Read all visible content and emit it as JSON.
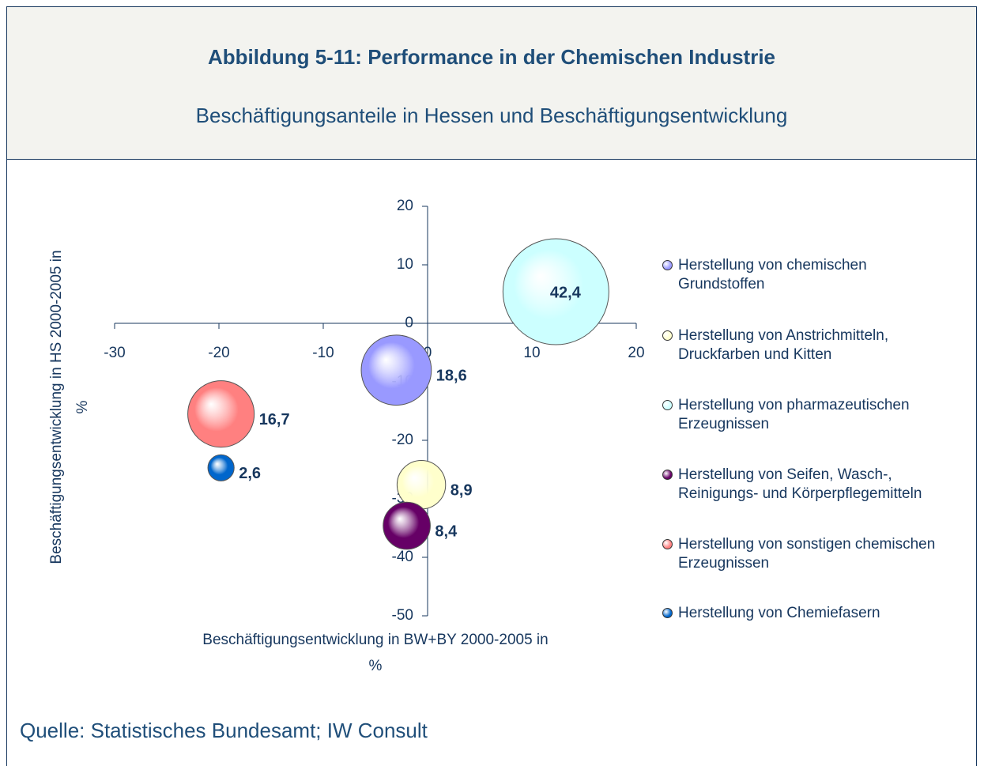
{
  "chart_data": {
    "type": "bubble",
    "title": "Abbildung 5-11: Performance in der Chemischen Industrie",
    "subtitle": "Beschäftigungsanteile in Hessen und Beschäftigungsentwicklung",
    "x_label": "Beschäftigungsentwicklung in BW+BY 2000-2005 in %",
    "y_label": "Beschäftigungsentwicklung in HS 2000-2005 in %",
    "source": "Quelle: Statistisches Bundesamt; IW Consult",
    "xlim": [
      -30,
      20
    ],
    "xticks": [
      -30,
      -20,
      -10,
      0,
      10,
      20
    ],
    "ylim": [
      -50,
      20
    ],
    "yticks": [
      -50,
      -40,
      -30,
      -20,
      -10,
      0,
      10,
      20
    ],
    "series": [
      {
        "name": "Herstellung von chemischen Grundstoffen",
        "color": "#9999ff",
        "x": [
          -3
        ],
        "values": [
          -8
        ],
        "sizes": [
          18.6
        ],
        "value_labels": [
          "18,6"
        ]
      },
      {
        "name": "Herstellung von Anstrichmitteln, Druckfarben und Kitten",
        "color": "#ffffcc",
        "x": [
          -0.6
        ],
        "values": [
          -27.6
        ],
        "sizes": [
          8.9
        ],
        "value_labels": [
          "8,9"
        ]
      },
      {
        "name": "Herstellung von pharmazeutischen Erzeugnissen",
        "color": "#ccffff",
        "x": [
          12.3
        ],
        "values": [
          5.4
        ],
        "sizes": [
          42.4
        ],
        "value_labels": [
          "42,4"
        ]
      },
      {
        "name": "Herstellung von Seifen, Wasch-, Reinigungs- und Körperpflegemitteln",
        "color": "#660066",
        "x": [
          -2
        ],
        "values": [
          -34.6
        ],
        "sizes": [
          8.4
        ],
        "value_labels": [
          "8,4"
        ]
      },
      {
        "name": "Herstellung von sonstigen chemischen Erzeugnissen",
        "color": "#ff8080",
        "x": [
          -19.8
        ],
        "values": [
          -15.5
        ],
        "sizes": [
          16.7
        ],
        "value_labels": [
          "16,7"
        ]
      },
      {
        "name": "Herstellung von Chemiefasern",
        "color": "#0066cc",
        "x": [
          -19.8
        ],
        "values": [
          -24.7
        ],
        "sizes": [
          2.6
        ],
        "value_labels": [
          "2,6"
        ]
      }
    ]
  }
}
